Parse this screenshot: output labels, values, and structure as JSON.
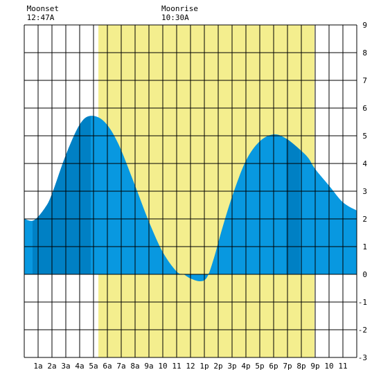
{
  "chart_data": {
    "type": "area",
    "title": "",
    "xlabel": "",
    "ylabel": "",
    "x_unit": "hours",
    "xlim": [
      0,
      24
    ],
    "ylim": [
      -3,
      9
    ],
    "grid": true,
    "x_tick_labels": [
      "1a",
      "2a",
      "3a",
      "4a",
      "5a",
      "6a",
      "7a",
      "8a",
      "9a",
      "10",
      "11",
      "12",
      "1p",
      "2p",
      "3p",
      "4p",
      "5p",
      "6p",
      "7p",
      "8p",
      "9p",
      "10",
      "11"
    ],
    "y_tick_labels": [
      "-3",
      "-2",
      "-1",
      "0",
      "1",
      "2",
      "3",
      "4",
      "5",
      "6",
      "7",
      "8",
      "9"
    ],
    "moon_events": [
      {
        "label": "Moonset",
        "time": "12:47A",
        "hour": 0.78
      },
      {
        "label": "Moonrise",
        "time": "10:30A",
        "hour": 10.5
      }
    ],
    "daylight_band": {
      "start_hour": 5.35,
      "end_hour": 20.95,
      "color": "#f4ee8e"
    },
    "dark_segments": [
      {
        "start_hour": 0.6,
        "end_hour": 4.8
      },
      {
        "start_hour": 18.9,
        "end_hour": 19.9
      }
    ],
    "series": [
      {
        "x": [
          0.0,
          0.7,
          1.5,
          2.0,
          3.0,
          4.0,
          4.8,
          5.8,
          6.8,
          8.0,
          9.0,
          10.0,
          11.0,
          11.5,
          12.0,
          12.7,
          13.2,
          13.7,
          14.2,
          15.0,
          16.0,
          17.0,
          18.0,
          18.9,
          19.9,
          20.5,
          21.0,
          22.0,
          23.0,
          24.0
        ],
        "y": [
          2.0,
          1.95,
          2.4,
          2.9,
          4.3,
          5.4,
          5.72,
          5.5,
          4.7,
          3.2,
          1.9,
          0.8,
          0.1,
          0.0,
          -0.15,
          -0.25,
          -0.1,
          0.6,
          1.5,
          2.8,
          4.1,
          4.8,
          5.05,
          4.9,
          4.5,
          4.2,
          3.8,
          3.2,
          2.6,
          2.3
        ]
      }
    ],
    "colors": {
      "water": "#0898e0",
      "water_dark": "#0080c4",
      "daylight": "#f4ee8e",
      "grid": "#000000"
    }
  }
}
